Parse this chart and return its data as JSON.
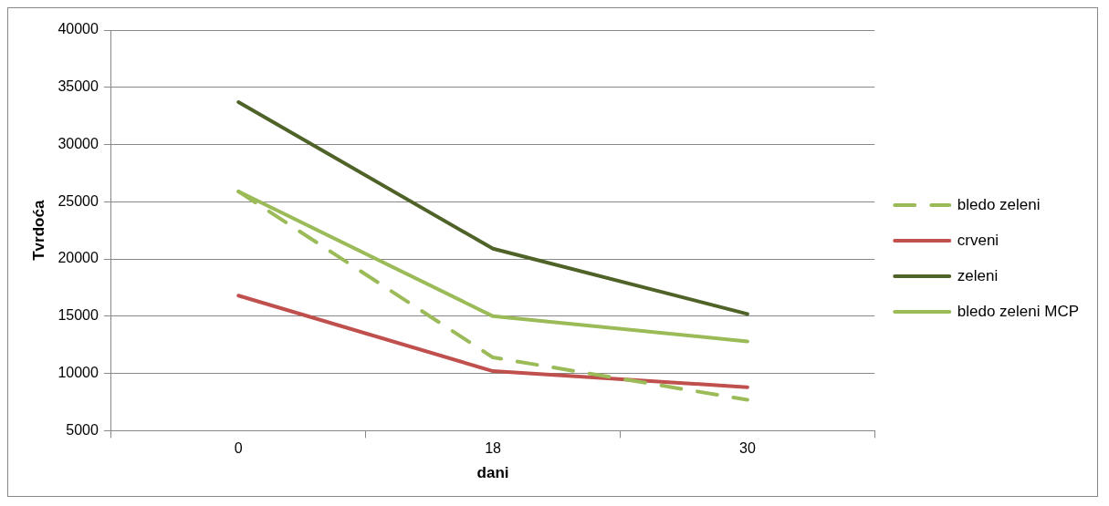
{
  "chart_data": {
    "type": "line",
    "xlabel": "dani",
    "ylabel": "Tvrdoća",
    "categories": [
      "0",
      "18",
      "30"
    ],
    "series": [
      {
        "name": "bledo zeleni",
        "color": "#9bbb59",
        "line_style": "dashed",
        "values": [
          25900,
          11400,
          7700
        ]
      },
      {
        "name": "crveni",
        "color": "#c0504d",
        "values": [
          16800,
          10200,
          8800
        ]
      },
      {
        "name": "zeleni",
        "color": "#4f6228",
        "values": [
          33700,
          20900,
          15200
        ]
      },
      {
        "name": "bledo zeleni MCP",
        "color": "#9bbb59",
        "values": [
          25900,
          15000,
          12800
        ]
      }
    ],
    "ylim": [
      5000,
      40000
    ],
    "yticks": [
      5000,
      10000,
      15000,
      20000,
      25000,
      30000,
      35000,
      40000
    ],
    "grid": "y",
    "legend": "right",
    "marker": "none",
    "line_style": "solid"
  }
}
